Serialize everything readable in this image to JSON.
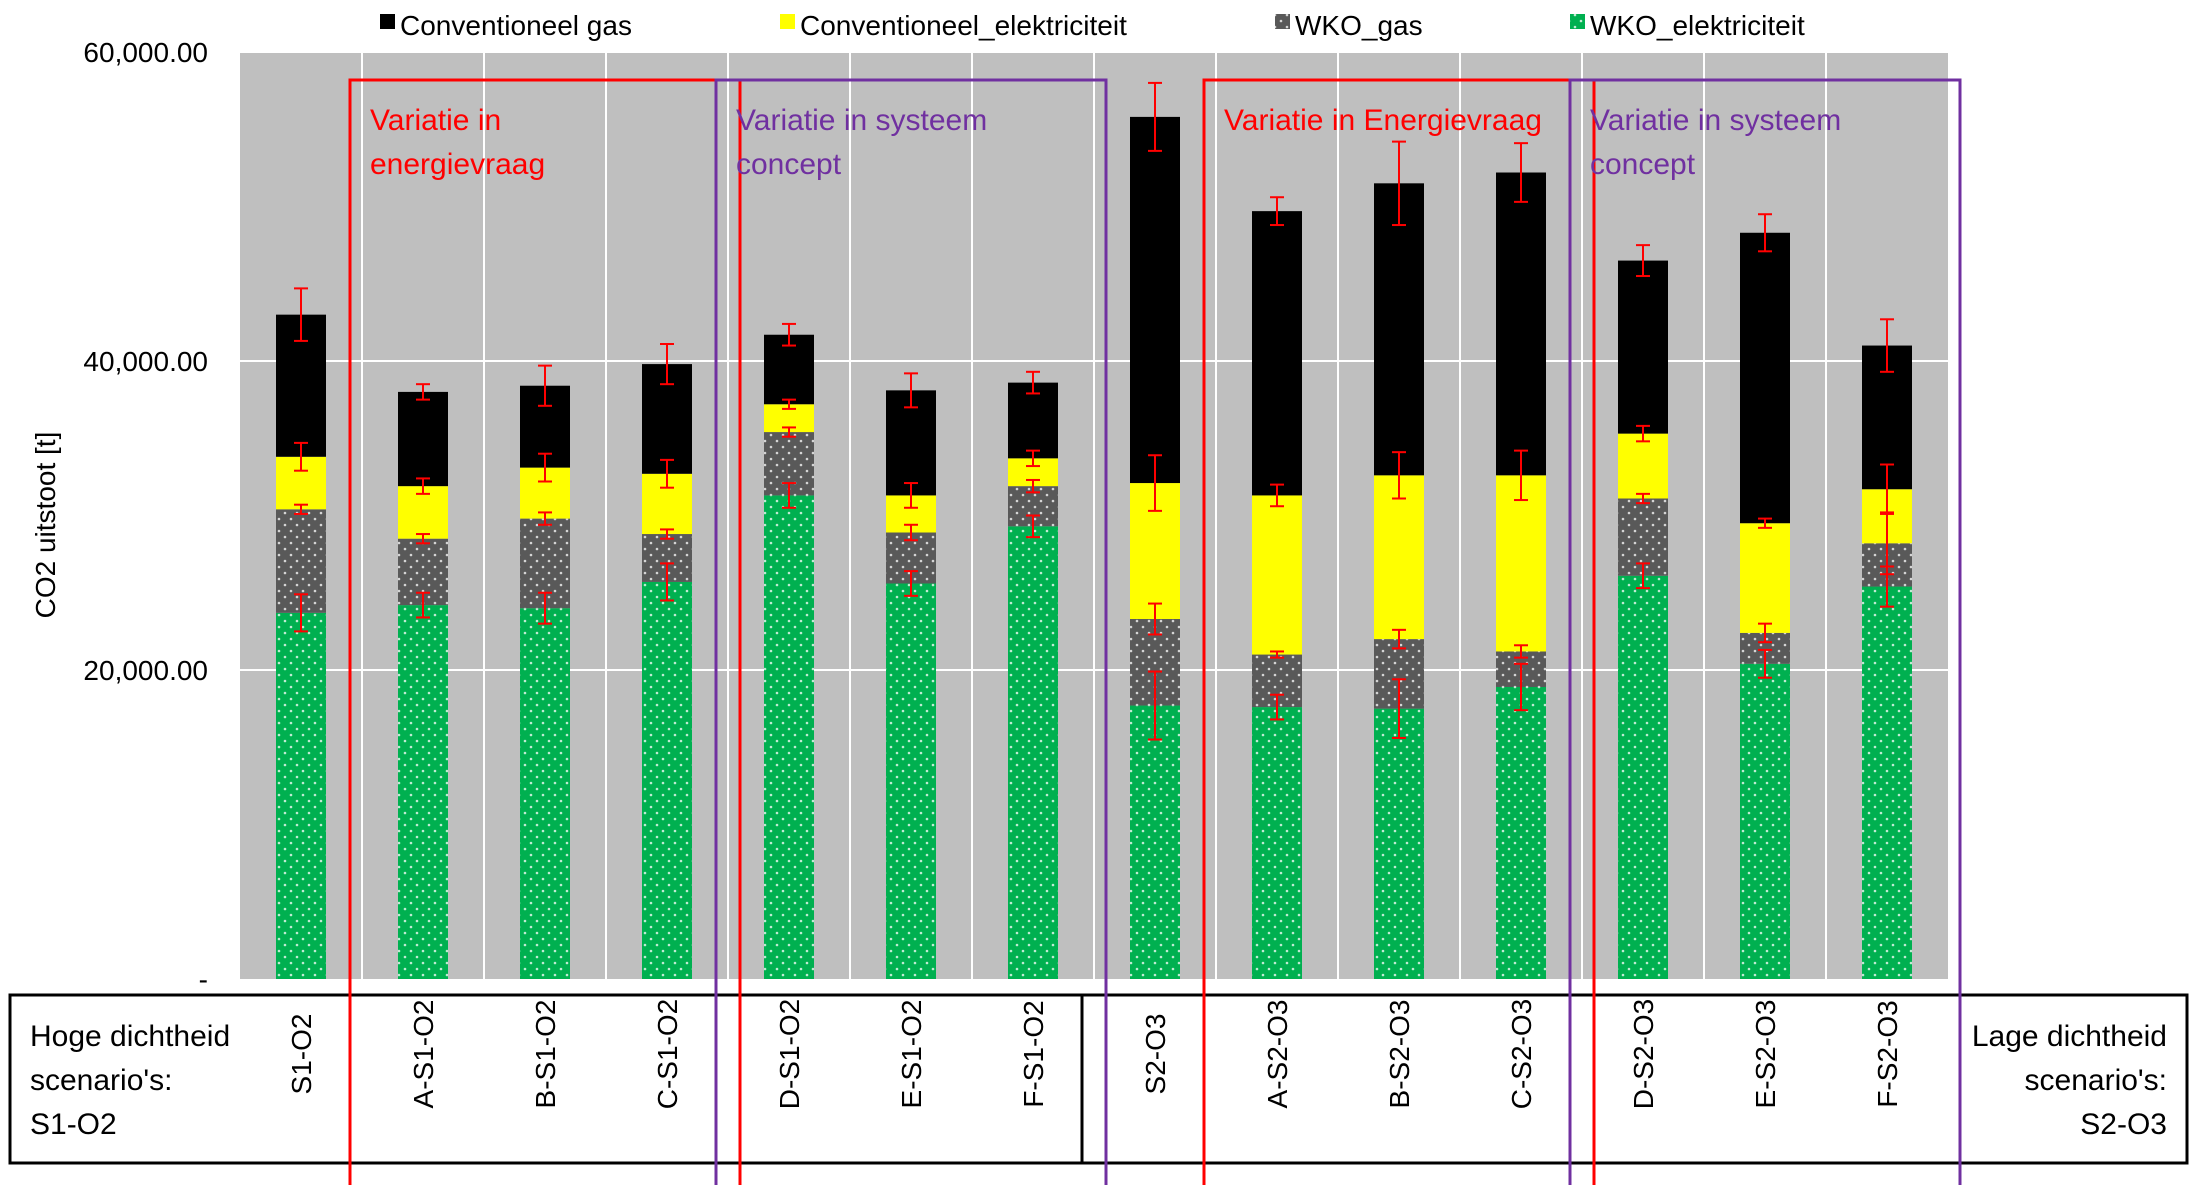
{
  "chart_data": {
    "type": "bar",
    "stacked": true,
    "title": "",
    "ylabel": "CO2 uitstoot [t]",
    "xlabel": "",
    "ylim": [
      0,
      60000
    ],
    "yticks": [
      0,
      20000,
      40000,
      60000
    ],
    "ytick_labels": [
      "-",
      "20,000.00",
      "40,000.00",
      "60,000.00"
    ],
    "grid": true,
    "legend_position": "top",
    "background_color": "#bfbfbf",
    "categories": [
      "S1-O2",
      "A-S1-O2",
      "B-S1-O2",
      "C-S1-O2",
      "D-S1-O2",
      "E-S1-O2",
      "F-S1-O2",
      "S2-O3",
      "A-S2-O3",
      "B-S2-O3",
      "C-S2-O3",
      "D-S2-O3",
      "E-S2-O3",
      "F-S2-O3"
    ],
    "series": [
      {
        "name": "WKO_elektriciteit",
        "color": "#00b050",
        "pattern": "dots",
        "values": [
          23700,
          24200,
          24000,
          25700,
          31300,
          25600,
          29300,
          17700,
          17600,
          17500,
          18900,
          26100,
          20400,
          25400
        ],
        "errors": [
          1200,
          800,
          1000,
          1200,
          800,
          800,
          700,
          2200,
          800,
          1900,
          1500,
          800,
          900,
          1300
        ]
      },
      {
        "name": "WKO_gas",
        "color": "#595959",
        "pattern": "dots",
        "values": [
          6700,
          4300,
          5800,
          3100,
          4100,
          3300,
          2600,
          5600,
          3400,
          4500,
          2300,
          5000,
          2000,
          2800
        ],
        "errors": [
          300,
          300,
          400,
          300,
          300,
          500,
          400,
          1000,
          200,
          600,
          400,
          300,
          600,
          2000
        ]
      },
      {
        "name": "Conventioneel_elektriciteit",
        "color": "#ffff00",
        "values": [
          3400,
          3400,
          3300,
          3900,
          1800,
          2400,
          1800,
          8800,
          10300,
          10600,
          11400,
          4200,
          7100,
          3500
        ],
        "errors": [
          900,
          500,
          900,
          900,
          300,
          800,
          500,
          1800,
          700,
          1500,
          1600,
          500,
          300,
          1600
        ]
      },
      {
        "name": "Conventioneel gas",
        "color": "#000000",
        "values": [
          9200,
          6100,
          5300,
          7100,
          4500,
          6800,
          4900,
          23700,
          18400,
          18900,
          19600,
          11200,
          18800,
          9300
        ],
        "errors": [
          1700,
          500,
          1300,
          1300,
          700,
          1100,
          700,
          2200,
          900,
          2700,
          1900,
          1000,
          1200,
          1700
        ]
      }
    ],
    "legend_order": [
      "Conventioneel gas",
      "Conventioneel_elektriciteit",
      "WKO_gas",
      "WKO_elektriciteit"
    ],
    "error_bar_color": "#ff0000",
    "annotations": [
      {
        "text_lines": [
          "Variatie in",
          "energievraag"
        ],
        "color": "#ff0000",
        "from": "A-S1-O2",
        "to": "C-S1-O2"
      },
      {
        "text_lines": [
          "Variatie in systeem",
          "concept"
        ],
        "color": "#7030a0",
        "from": "D-S1-O2",
        "to": "F-S1-O2"
      },
      {
        "text_lines": [
          "Variatie in Energievraag"
        ],
        "color": "#ff0000",
        "from": "A-S2-O3",
        "to": "C-S2-O3"
      },
      {
        "text_lines": [
          "Variatie in systeem",
          "concept"
        ],
        "color": "#7030a0",
        "from": "D-S2-O3",
        "to": "F-S2-O3"
      }
    ],
    "group_labels": [
      {
        "text_lines": [
          "Hoge dichtheid",
          "scenario's:",
          "S1-O2"
        ],
        "align": "left",
        "from": "S1-O2",
        "to": "F-S1-O2"
      },
      {
        "text_lines": [
          "Lage dichtheid",
          "scenario's:",
          "S2-O3"
        ],
        "align": "right",
        "from": "S2-O3",
        "to": "F-S2-O3"
      }
    ]
  }
}
